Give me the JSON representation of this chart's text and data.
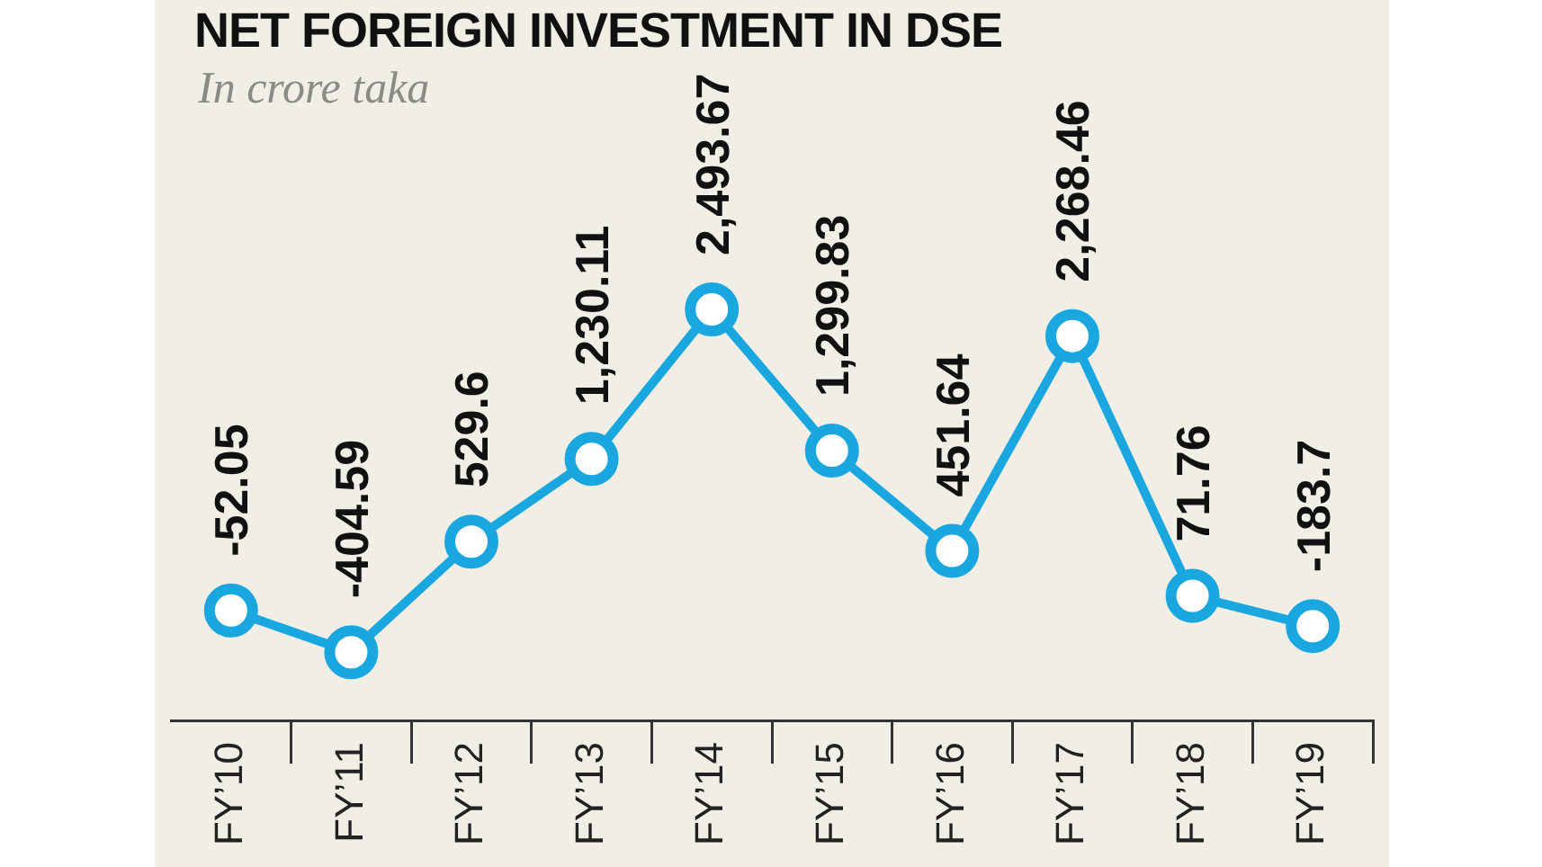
{
  "chart_data": {
    "type": "line",
    "title": "NET FOREIGN INVESTMENT IN DSE",
    "subtitle": "In crore taka",
    "categories": [
      "FY’10",
      "FY’11",
      "FY’12",
      "FY’13",
      "FY’14",
      "FY’15",
      "FY’16",
      "FY’17",
      "FY’18",
      "FY’19"
    ],
    "values": [
      -52.05,
      -404.59,
      529.6,
      1230.11,
      2493.67,
      1299.83,
      451.64,
      2268.46,
      71.76,
      -183.7
    ],
    "value_labels": [
      "-52.05",
      "-404.59",
      "529.6",
      "1,230.11",
      "2,493.67",
      "1,299.83",
      "451.64",
      "2,268.46",
      "71.76",
      "-183.7"
    ],
    "color": "#1aa7e0",
    "marker": "circle",
    "line_style": "solid",
    "grid": false,
    "legend": false
  }
}
